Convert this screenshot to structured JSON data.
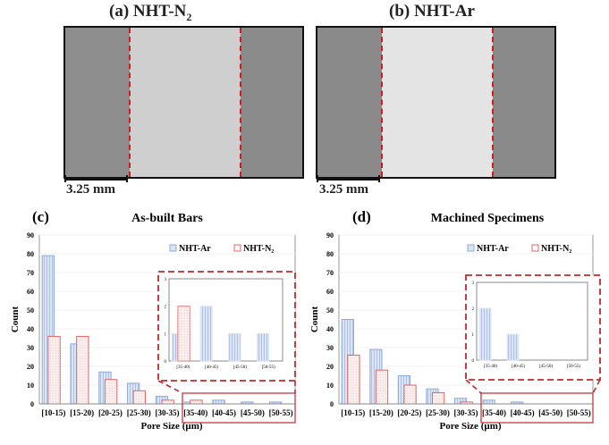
{
  "panels": {
    "a": {
      "label": "(a) NHT-N",
      "sub": "2",
      "scale": "3.25 mm"
    },
    "b": {
      "label": "(b) NHT-Ar",
      "sub": "",
      "scale": "3.25 mm"
    }
  },
  "colors": {
    "ar": "#8ea9db",
    "ar_fill": "#dbe5f5",
    "n2": "#e06666",
    "n2_fill": "#fbe4e4",
    "inset": "#c0282d",
    "zoom_box": "#c0282d"
  },
  "chart_data": [
    {
      "id": "c",
      "panel_label": "(c)",
      "type": "bar",
      "title": "As-built Bars",
      "xlabel": "Pore Size (µm)",
      "ylabel": "Count",
      "ylim": [
        0,
        90
      ],
      "yticks": [
        0,
        10,
        20,
        30,
        40,
        50,
        60,
        70,
        80,
        90
      ],
      "categories": [
        "[10-15)",
        "[15-20)",
        "[20-25)",
        "[25-30)",
        "[30-35)",
        "[35-40)",
        "[40-45)",
        "[45-50)",
        "[50-55)"
      ],
      "series": [
        {
          "name": "NHT-Ar",
          "values": [
            79,
            32,
            17,
            11,
            4,
            1,
            2,
            1,
            1
          ]
        },
        {
          "name": "NHT-N₂",
          "values": [
            36,
            36,
            13,
            7,
            2,
            2,
            0,
            0,
            0
          ]
        }
      ],
      "legend": "top-right",
      "inset": {
        "categories": [
          "[35-40)",
          "[40-45)",
          "[45-50)",
          "[50-55)"
        ],
        "ylim": [
          0,
          3
        ],
        "yticks": [
          0,
          1,
          2,
          3
        ],
        "series": [
          {
            "name": "NHT-Ar",
            "values": [
              1,
              2,
              1,
              1
            ]
          },
          {
            "name": "NHT-N₂",
            "values": [
              2,
              0,
              0,
              0
            ]
          }
        ]
      }
    },
    {
      "id": "d",
      "panel_label": "(d)",
      "type": "bar",
      "title": "Machined Specimens",
      "xlabel": "Pore Size (µm)",
      "ylabel": "Count",
      "ylim": [
        0,
        90
      ],
      "yticks": [
        0,
        10,
        20,
        30,
        40,
        50,
        60,
        70,
        80,
        90
      ],
      "categories": [
        "[10-15)",
        "[15-20)",
        "[20-25)",
        "[25-30)",
        "[30-35)",
        "[35-40)",
        "[40-45)",
        "[45-50)",
        "[50-55)"
      ],
      "series": [
        {
          "name": "NHT-Ar",
          "values": [
            45,
            29,
            15,
            8,
            3,
            2,
            1,
            0,
            0
          ]
        },
        {
          "name": "NHT-N₂",
          "values": [
            26,
            18,
            10,
            6,
            1,
            0,
            0,
            0,
            0
          ]
        }
      ],
      "legend": "top-right",
      "inset": {
        "categories": [
          "[35-40)",
          "[40-45)",
          "[45-50)",
          "[50-55)"
        ],
        "ylim": [
          0,
          3
        ],
        "yticks": [
          0,
          1,
          2,
          3
        ],
        "series": [
          {
            "name": "NHT-Ar",
            "values": [
              2,
              1,
              0,
              0
            ]
          },
          {
            "name": "NHT-N₂",
            "values": [
              0,
              0,
              0,
              0
            ]
          }
        ]
      }
    }
  ]
}
